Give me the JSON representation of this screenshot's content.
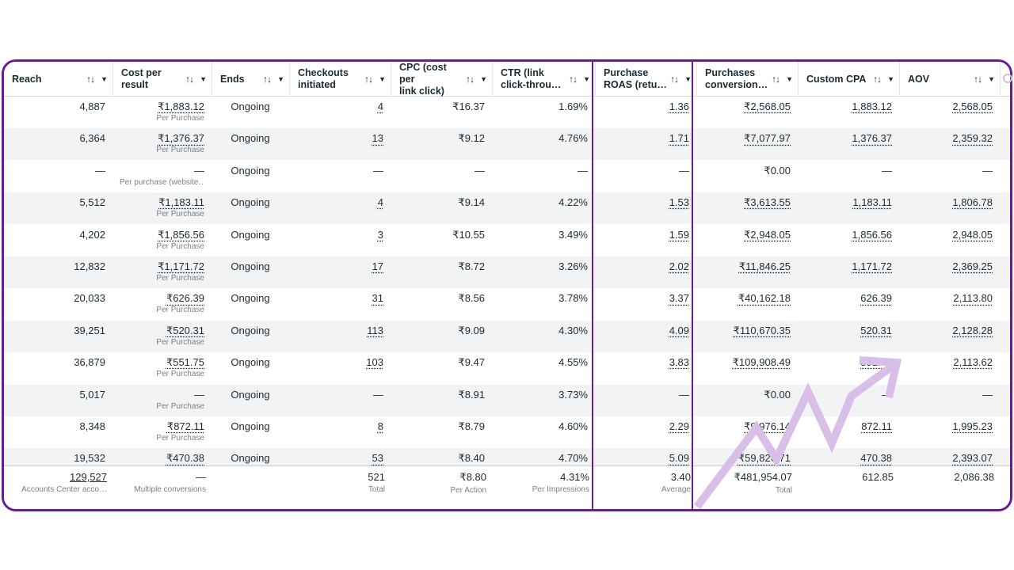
{
  "headers": [
    {
      "label": "Reach",
      "line2": "",
      "sort": "↑↓",
      "menu": "▼"
    },
    {
      "label": "Cost per",
      "line2": "result",
      "sort": "↑↓",
      "menu": "▼"
    },
    {
      "label": "Ends",
      "line2": "",
      "sort": "↑↓",
      "menu": "▼"
    },
    {
      "label": "Checkouts",
      "line2": "initiated",
      "sort": "↑↓",
      "menu": "▼"
    },
    {
      "label": "CPC (cost per",
      "line2": "link click)",
      "sort": "↑↓",
      "menu": "▼"
    },
    {
      "label": "CTR (link",
      "line2": "click-throu…",
      "sort": "↑↓",
      "menu": "▼"
    },
    {
      "label": "Purchase",
      "line2": "ROAS (retu…",
      "sort": "↑↓",
      "menu": "▼"
    },
    {
      "label": "Purchases",
      "line2": "conversion…",
      "sort": "↑↓",
      "menu": "▼"
    },
    {
      "label": "Custom CPA",
      "line2": "",
      "sort": "↑↓",
      "menu": "▼"
    },
    {
      "label": "AOV",
      "line2": "",
      "sort": "↑↓",
      "menu": "▼"
    }
  ],
  "rows": [
    {
      "reach": "4,887",
      "cost": "₹1,883.12",
      "cost_sub": "Per Purchase",
      "ends": "Ongoing",
      "checkouts": "4",
      "cpc": "₹16.37",
      "ctr": "1.69%",
      "roas": "1.36",
      "purchases_value": "₹2,568.05",
      "cpa": "1,883.12",
      "aov": "2,568.05"
    },
    {
      "reach": "6,364",
      "cost": "₹1,376.37",
      "cost_sub": "Per Purchase",
      "ends": "Ongoing",
      "checkouts": "13",
      "cpc": "₹9.12",
      "ctr": "4.76%",
      "roas": "1.71",
      "purchases_value": "₹7,077.97",
      "cpa": "1,376.37",
      "aov": "2,359.32"
    },
    {
      "reach": "—",
      "cost": "—",
      "cost_sub": "Per purchase (website…",
      "ends": "Ongoing",
      "checkouts": "—",
      "cpc": "—",
      "ctr": "—",
      "roas": "—",
      "purchases_value": "₹0.00",
      "cpa": "—",
      "aov": "—"
    },
    {
      "reach": "5,512",
      "cost": "₹1,183.11",
      "cost_sub": "Per Purchase",
      "ends": "Ongoing",
      "checkouts": "4",
      "cpc": "₹9.14",
      "ctr": "4.22%",
      "roas": "1.53",
      "purchases_value": "₹3,613.55",
      "cpa": "1,183.11",
      "aov": "1,806.78"
    },
    {
      "reach": "4,202",
      "cost": "₹1,856.56",
      "cost_sub": "Per Purchase",
      "ends": "Ongoing",
      "checkouts": "3",
      "cpc": "₹10.55",
      "ctr": "3.49%",
      "roas": "1.59",
      "purchases_value": "₹2,948.05",
      "cpa": "1,856.56",
      "aov": "2,948.05"
    },
    {
      "reach": "12,832",
      "cost": "₹1,171.72",
      "cost_sub": "Per Purchase",
      "ends": "Ongoing",
      "checkouts": "17",
      "cpc": "₹8.72",
      "ctr": "3.26%",
      "roas": "2.02",
      "purchases_value": "₹11,846.25",
      "cpa": "1,171.72",
      "aov": "2,369.25"
    },
    {
      "reach": "20,033",
      "cost": "₹626.39",
      "cost_sub": "Per Purchase",
      "ends": "Ongoing",
      "checkouts": "31",
      "cpc": "₹8.56",
      "ctr": "3.78%",
      "roas": "3.37",
      "purchases_value": "₹40,162.18",
      "cpa": "626.39",
      "aov": "2,113.80"
    },
    {
      "reach": "39,251",
      "cost": "₹520.31",
      "cost_sub": "Per Purchase",
      "ends": "Ongoing",
      "checkouts": "113",
      "cpc": "₹9.09",
      "ctr": "4.30%",
      "roas": "4.09",
      "purchases_value": "₹110,670.35",
      "cpa": "520.31",
      "aov": "2,128.28"
    },
    {
      "reach": "36,879",
      "cost": "₹551.75",
      "cost_sub": "Per Purchase",
      "ends": "Ongoing",
      "checkouts": "103",
      "cpc": "₹9.47",
      "ctr": "4.55%",
      "roas": "3.83",
      "purchases_value": "₹109,908.49",
      "cpa": "551.75",
      "aov": "2,113.62"
    },
    {
      "reach": "5,017",
      "cost": "—",
      "cost_sub": "Per Purchase",
      "ends": "Ongoing",
      "checkouts": "—",
      "cpc": "₹8.91",
      "ctr": "3.73%",
      "roas": "—",
      "purchases_value": "₹0.00",
      "cpa": "—",
      "aov": "—"
    },
    {
      "reach": "8,348",
      "cost": "₹872.11",
      "cost_sub": "Per Purchase",
      "ends": "Ongoing",
      "checkouts": "8",
      "cpc": "₹8.79",
      "ctr": "4.60%",
      "roas": "2.29",
      "purchases_value": "₹9,976.14",
      "cpa": "872.11",
      "aov": "1,995.23"
    },
    {
      "reach": "19,532",
      "cost": "₹470.38",
      "cost_sub": "Per Purchase",
      "ends": "Ongoing",
      "checkouts": "53",
      "cpc": "₹8.40",
      "ctr": "4.70%",
      "roas": "5.09",
      "purchases_value": "₹59,826.71",
      "cpa": "470.38",
      "aov": "2,393.07"
    }
  ],
  "totals": {
    "reach": "129,527",
    "reach_sub": "Accounts Center acco…",
    "cost": "—",
    "cost_sub": "Multiple conversions",
    "checkouts": "521",
    "checkouts_sub": "Total",
    "cpc": "₹8.80",
    "cpc_sub": "Per Action",
    "ctr": "4.31%",
    "ctr_sub": "Per Impressions",
    "roas": "3.40",
    "roas_sub": "Average",
    "purchases_value": "₹481,954.07",
    "purchases_value_sub": "Total",
    "cpa": "612.85",
    "aov": "2,086.38"
  },
  "colors": {
    "highlight_border": "#6a1b9a",
    "arrow": "#d9bfe8"
  },
  "icons": {
    "settings": "settings-icon",
    "trend_arrow": "trend-arrow-icon"
  }
}
